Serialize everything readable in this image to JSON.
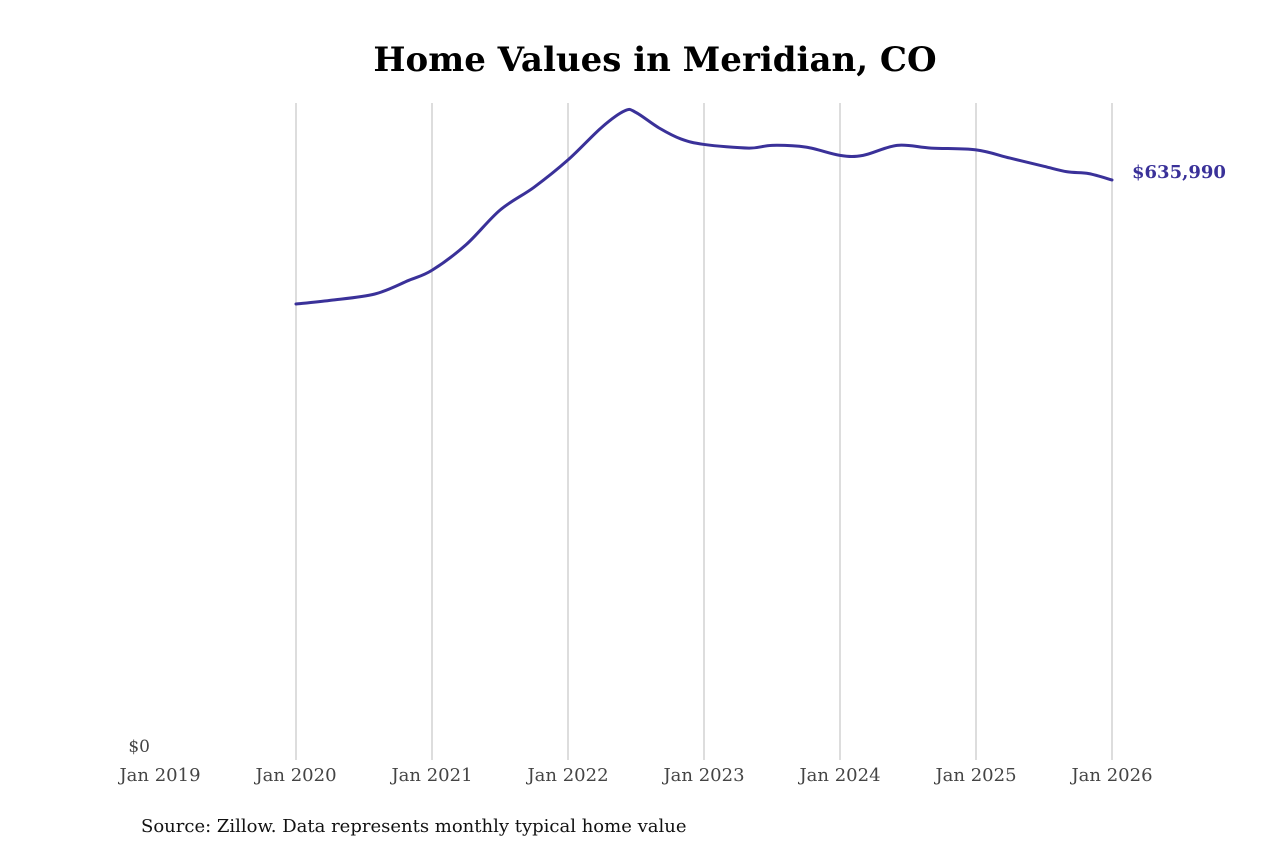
{
  "chart_data": {
    "type": "line",
    "title": "Home Values in Meridian, CO",
    "source": "Source: Zillow. Data represents monthly typical home value",
    "xlabel": "",
    "ylabel": "",
    "xlim": [
      2019,
      2026
    ],
    "ylim": [
      0,
      720000
    ],
    "y_tick_labels": [
      "$0"
    ],
    "x_tick_labels": [
      "Jan 2019",
      "Jan 2020",
      "Jan 2021",
      "Jan 2022",
      "Jan 2023",
      "Jan 2024",
      "Jan 2025",
      "Jan 2026"
    ],
    "grid": "vertical",
    "line_color": "#3a3199",
    "end_label": "$635,990",
    "series": [
      {
        "name": "Typical home value",
        "x": [
          2020.0,
          2020.25,
          2020.58,
          2020.83,
          2021.0,
          2021.25,
          2021.5,
          2021.75,
          2022.0,
          2022.25,
          2022.42,
          2022.5,
          2022.67,
          2022.83,
          2023.0,
          2023.33,
          2023.5,
          2023.75,
          2024.0,
          2024.17,
          2024.42,
          2024.67,
          2025.0,
          2025.25,
          2025.5,
          2025.67,
          2025.83,
          2026.0
        ],
        "values": [
          500000,
          504000,
          511000,
          526000,
          537000,
          565000,
          603000,
          628000,
          658000,
          694000,
          712000,
          710000,
          693000,
          681000,
          675000,
          671000,
          674000,
          672000,
          663000,
          663000,
          674000,
          671000,
          669000,
          660000,
          651000,
          645000,
          643000,
          635990
        ]
      }
    ]
  }
}
